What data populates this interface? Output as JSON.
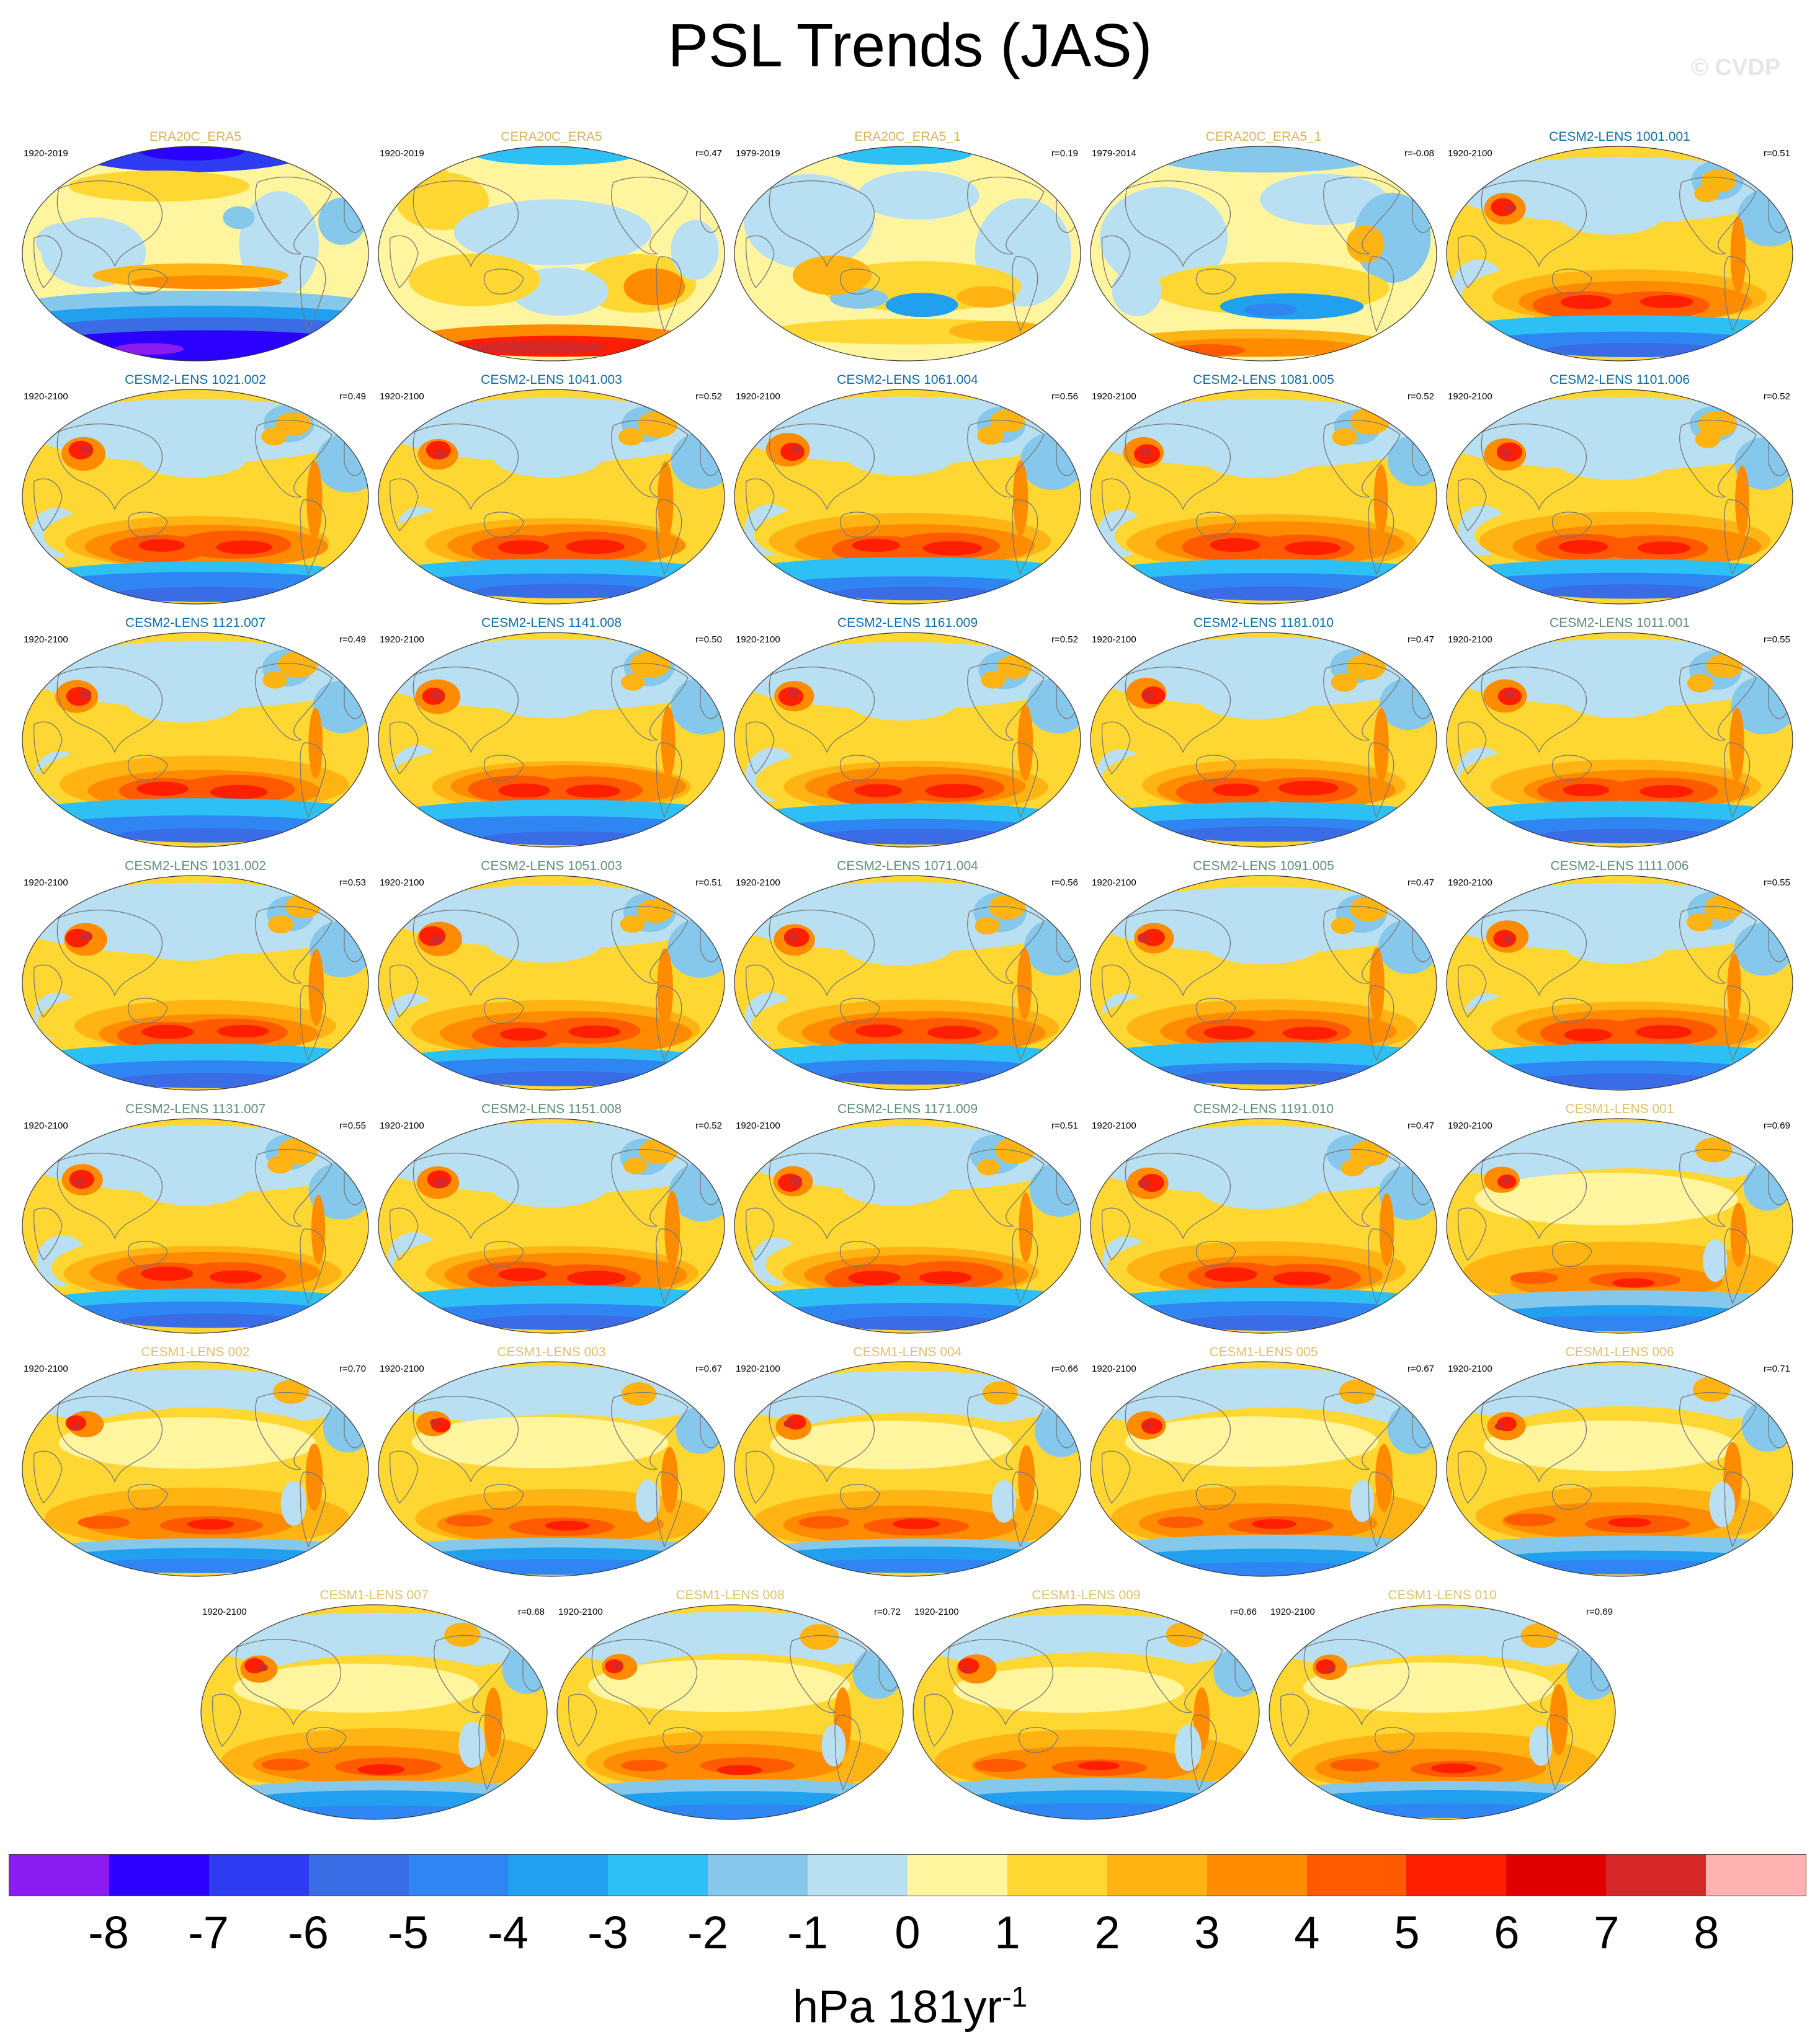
{
  "title": "PSL Trends (JAS)",
  "watermark": "© CVDP",
  "units": {
    "base": "hPa 181yr",
    "exponent": "-1"
  },
  "colorbar": {
    "colors": [
      "#8a1cf2",
      "#2b00ff",
      "#2d3bf2",
      "#3a6ce6",
      "#2f86f2",
      "#21a0f0",
      "#2cc0f5",
      "#86c8eb",
      "#b8dff2",
      "#fff59e",
      "#ffd733",
      "#ffb413",
      "#ff8c00",
      "#ff5a00",
      "#ff1e00",
      "#e00000",
      "#d62828",
      "#ffb2b2"
    ],
    "ticks": [
      "-8",
      "-7",
      "-6",
      "-5",
      "-4",
      "-3",
      "-2",
      "-1",
      "0",
      "1",
      "2",
      "3",
      "4",
      "5",
      "6",
      "7",
      "8"
    ]
  },
  "panels": [
    {
      "title": "ERA20C_ERA5",
      "period": "1920-2019",
      "r": "",
      "tc": "#d9b25f",
      "v": "obs1"
    },
    {
      "title": "CERA20C_ERA5",
      "period": "1920-2019",
      "r": "r=0.47",
      "tc": "#d9b25f",
      "v": "obs2"
    },
    {
      "title": "ERA20C_ERA5_1",
      "period": "1979-2019",
      "r": "r=0.19",
      "tc": "#d9b25f",
      "v": "obs3"
    },
    {
      "title": "CERA20C_ERA5_1",
      "period": "1979-2014",
      "r": "r=-0.08",
      "tc": "#d9b25f",
      "v": "obs4"
    },
    {
      "title": "CESM2-LENS 1001.001",
      "period": "1920-2100",
      "r": "r=0.51",
      "tc": "#0f6ea3",
      "v": "c2"
    },
    {
      "title": "CESM2-LENS 1021.002",
      "period": "1920-2100",
      "r": "r=0.49",
      "tc": "#0f6ea3",
      "v": "c2"
    },
    {
      "title": "CESM2-LENS 1041.003",
      "period": "1920-2100",
      "r": "r=0.52",
      "tc": "#0f6ea3",
      "v": "c2"
    },
    {
      "title": "CESM2-LENS 1061.004",
      "period": "1920-2100",
      "r": "r=0.56",
      "tc": "#0f6ea3",
      "v": "c2"
    },
    {
      "title": "CESM2-LENS 1081.005",
      "period": "1920-2100",
      "r": "r=0.52",
      "tc": "#0f6ea3",
      "v": "c2"
    },
    {
      "title": "CESM2-LENS 1101.006",
      "period": "1920-2100",
      "r": "r=0.52",
      "tc": "#0f6ea3",
      "v": "c2"
    },
    {
      "title": "CESM2-LENS 1121.007",
      "period": "1920-2100",
      "r": "r=0.49",
      "tc": "#0f6ea3",
      "v": "c2"
    },
    {
      "title": "CESM2-LENS 1141.008",
      "period": "1920-2100",
      "r": "r=0.50",
      "tc": "#0f6ea3",
      "v": "c2"
    },
    {
      "title": "CESM2-LENS 1161.009",
      "period": "1920-2100",
      "r": "r=0.52",
      "tc": "#0f6ea3",
      "v": "c2"
    },
    {
      "title": "CESM2-LENS 1181.010",
      "period": "1920-2100",
      "r": "r=0.47",
      "tc": "#0f6ea3",
      "v": "c2"
    },
    {
      "title": "CESM2-LENS 1011.001",
      "period": "1920-2100",
      "r": "r=0.55",
      "tc": "#5f8c78",
      "v": "c2"
    },
    {
      "title": "CESM2-LENS 1031.002",
      "period": "1920-2100",
      "r": "r=0.53",
      "tc": "#5f8c78",
      "v": "c2"
    },
    {
      "title": "CESM2-LENS 1051.003",
      "period": "1920-2100",
      "r": "r=0.51",
      "tc": "#5f8c78",
      "v": "c2"
    },
    {
      "title": "CESM2-LENS 1071.004",
      "period": "1920-2100",
      "r": "r=0.56",
      "tc": "#5f8c78",
      "v": "c2"
    },
    {
      "title": "CESM2-LENS 1091.005",
      "period": "1920-2100",
      "r": "r=0.47",
      "tc": "#5f8c78",
      "v": "c2"
    },
    {
      "title": "CESM2-LENS 1111.006",
      "period": "1920-2100",
      "r": "r=0.55",
      "tc": "#5f8c78",
      "v": "c2"
    },
    {
      "title": "CESM2-LENS 1131.007",
      "period": "1920-2100",
      "r": "r=0.55",
      "tc": "#5f8c78",
      "v": "c2"
    },
    {
      "title": "CESM2-LENS 1151.008",
      "period": "1920-2100",
      "r": "r=0.52",
      "tc": "#5f8c78",
      "v": "c2"
    },
    {
      "title": "CESM2-LENS 1171.009",
      "period": "1920-2100",
      "r": "r=0.51",
      "tc": "#5f8c78",
      "v": "c2"
    },
    {
      "title": "CESM2-LENS 1191.010",
      "period": "1920-2100",
      "r": "r=0.47",
      "tc": "#5f8c78",
      "v": "c2"
    },
    {
      "title": "CESM1-LENS 001",
      "period": "1920-2100",
      "r": "r=0.69",
      "tc": "#e0c070",
      "v": "c1"
    },
    {
      "title": "CESM1-LENS 002",
      "period": "1920-2100",
      "r": "r=0.70",
      "tc": "#e0c070",
      "v": "c1"
    },
    {
      "title": "CESM1-LENS 003",
      "period": "1920-2100",
      "r": "r=0.67",
      "tc": "#e0c070",
      "v": "c1"
    },
    {
      "title": "CESM1-LENS 004",
      "period": "1920-2100",
      "r": "r=0.66",
      "tc": "#e0c070",
      "v": "c1"
    },
    {
      "title": "CESM1-LENS 005",
      "period": "1920-2100",
      "r": "r=0.67",
      "tc": "#e0c070",
      "v": "c1"
    },
    {
      "title": "CESM1-LENS 006",
      "period": "1920-2100",
      "r": "r=0.71",
      "tc": "#e0c070",
      "v": "c1"
    },
    {
      "title": "CESM1-LENS 007",
      "period": "1920-2100",
      "r": "r=0.68",
      "tc": "#e0c070",
      "v": "c1"
    },
    {
      "title": "CESM1-LENS 008",
      "period": "1920-2100",
      "r": "r=0.72",
      "tc": "#e0c070",
      "v": "c1"
    },
    {
      "title": "CESM1-LENS 009",
      "period": "1920-2100",
      "r": "r=0.66",
      "tc": "#e0c070",
      "v": "c1"
    },
    {
      "title": "CESM1-LENS 010",
      "period": "1920-2100",
      "r": "r=0.69",
      "tc": "#e0c070",
      "v": "c1"
    }
  ]
}
